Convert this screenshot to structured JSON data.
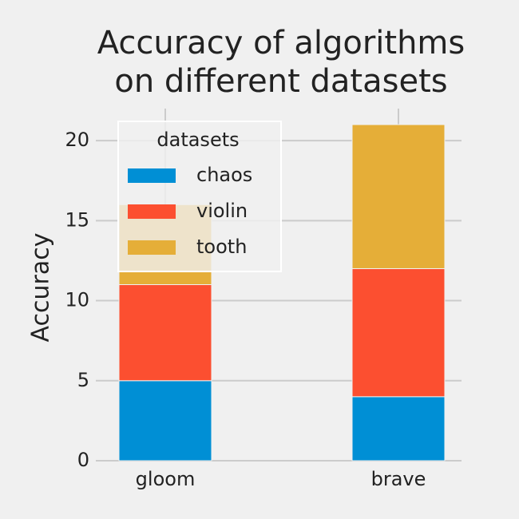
{
  "chart_data": {
    "type": "stacked_bar",
    "title": [
      "Accuracy of algorithms",
      "on different datasets"
    ],
    "y_label": "Accuracy",
    "categories": [
      "gloom",
      "brave"
    ],
    "series": [
      {
        "name": "chaos",
        "color": "#008fd5",
        "values": [
          5,
          4
        ]
      },
      {
        "name": "violin",
        "color": "#fc4f30",
        "values": [
          6,
          8
        ]
      },
      {
        "name": "tooth",
        "color": "#e5ae38",
        "values": [
          5,
          9
        ]
      }
    ],
    "legend_title": "datasets",
    "legend_position": "upper left",
    "ylim": [
      0,
      22
    ],
    "yticks": [
      0,
      5,
      10,
      15,
      20
    ],
    "grid": true
  }
}
